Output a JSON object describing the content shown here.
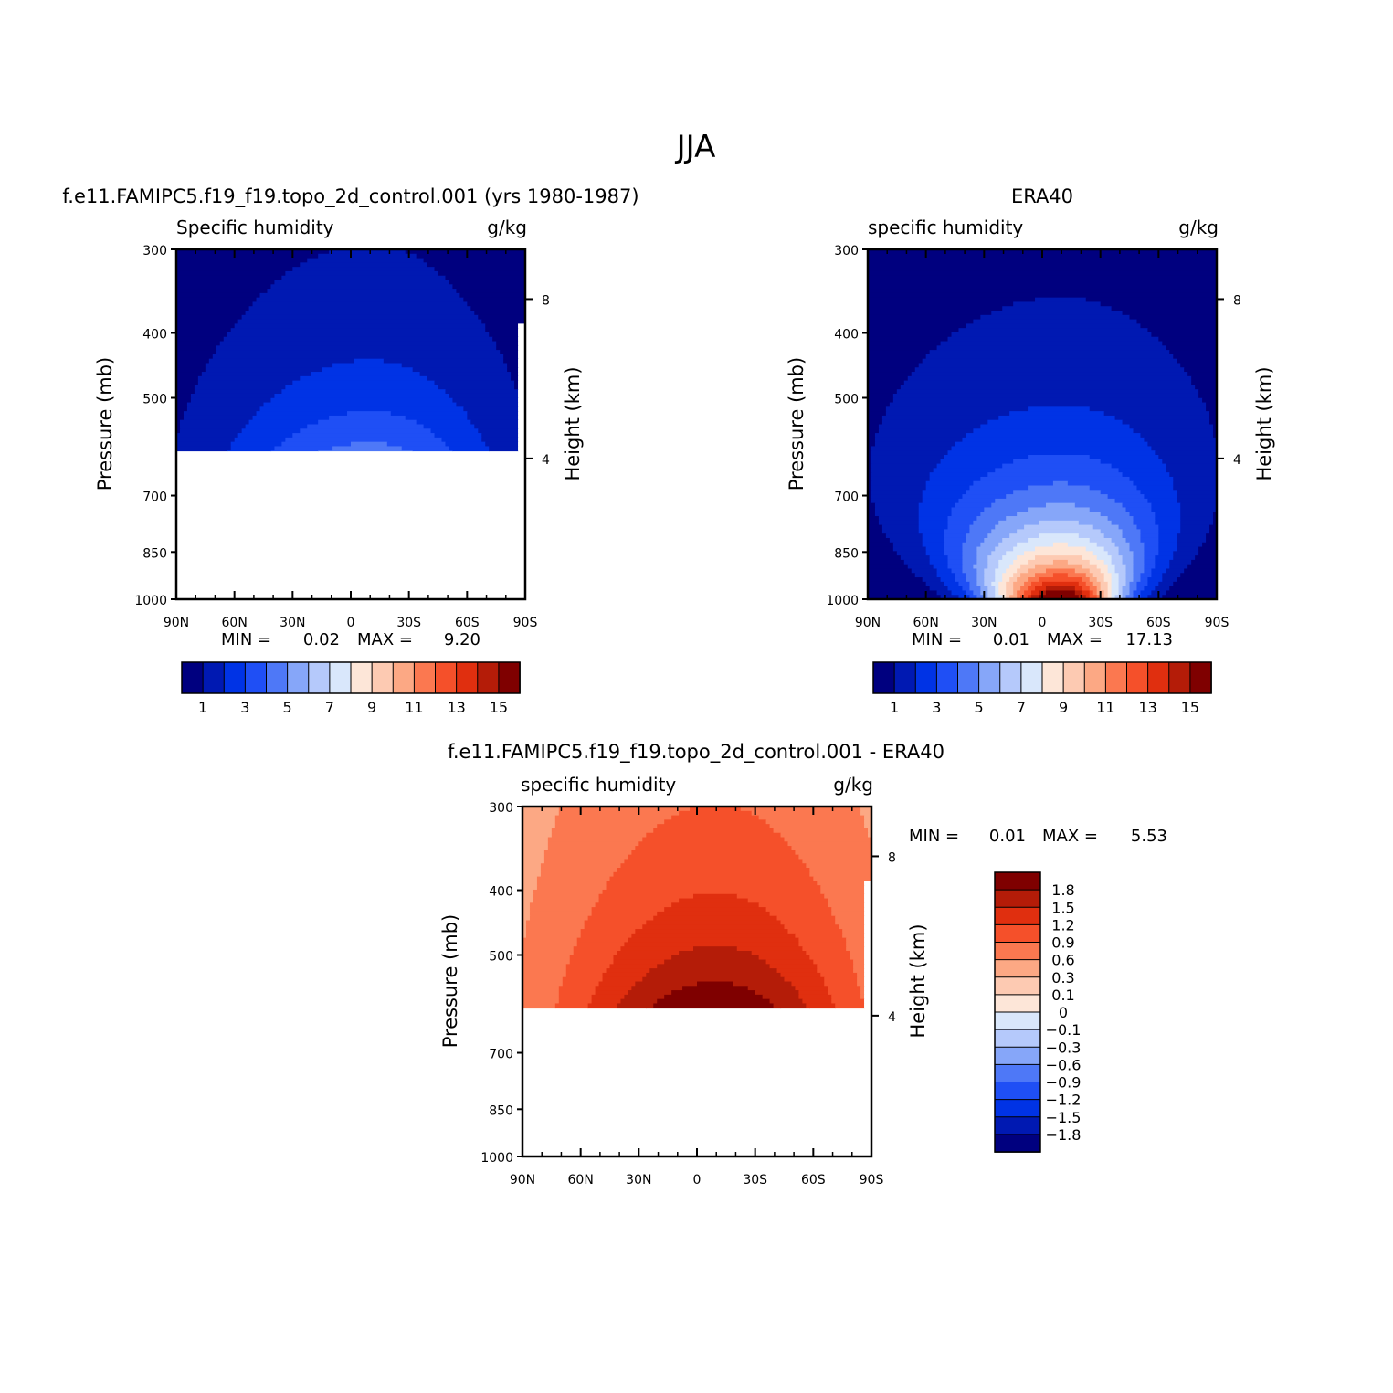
{
  "figure_title": "JJA",
  "colors": {
    "seq16": [
      "#00007f",
      "#0019b2",
      "#0033e5",
      "#1f4ff5",
      "#4e78f7",
      "#86a6f9",
      "#b5c9fb",
      "#d9e7fb",
      "#fde6d8",
      "#fdcab2",
      "#fca884",
      "#fb7850",
      "#f5502a",
      "#e02f0f",
      "#b41c08",
      "#7f0000"
    ],
    "diff18": [
      "#00007f",
      "#0019b2",
      "#0033e5",
      "#1f4ff5",
      "#4e78f7",
      "#86a6f9",
      "#b5c9fb",
      "#d9e7fb",
      "#fde6d8",
      "#fdcab2",
      "#fca884",
      "#fb7850",
      "#f5502a",
      "#e02f0f",
      "#b41c08",
      "#7f0000"
    ]
  },
  "chart_data": [
    {
      "type": "heatmap",
      "title": "f.e11.FAMIPC5.f19_f19.topo_2d_control.001 (yrs 1980-1987)",
      "left_label": "Specific humidity",
      "right_label": "g/kg",
      "xlabel": "",
      "ylabel": "Pressure (mb)",
      "y2label": "Height (km)",
      "x_ticks": [
        "90N",
        "60N",
        "30N",
        "0",
        "30S",
        "60S",
        "90S"
      ],
      "y_ticks": [
        300,
        400,
        500,
        700,
        850,
        1000
      ],
      "y2_ticks": [
        8,
        4
      ],
      "ylim": [
        300,
        1000
      ],
      "min_label": "MIN =",
      "min_value": "0.02",
      "max_label": "MAX =",
      "max_value": "9.20",
      "data_lower_limit_mb": 600,
      "colorbar_labels": [
        "1",
        "3",
        "5",
        "7",
        "9",
        "11",
        "13",
        "15"
      ],
      "levels": [
        1,
        2,
        3,
        4,
        5,
        6,
        7,
        8,
        9,
        10,
        11,
        12,
        13,
        14,
        15
      ],
      "peak_latitude": -10,
      "max_value_num": 9.2
    },
    {
      "type": "heatmap",
      "title": "ERA40",
      "left_label": "specific humidity",
      "right_label": "g/kg",
      "xlabel": "",
      "ylabel": "Pressure (mb)",
      "y2label": "Height (km)",
      "x_ticks": [
        "90N",
        "60N",
        "30N",
        "0",
        "30S",
        "60S",
        "90S"
      ],
      "y_ticks": [
        300,
        400,
        500,
        700,
        850,
        1000
      ],
      "y2_ticks": [
        8,
        4
      ],
      "ylim": [
        300,
        1000
      ],
      "min_label": "MIN =",
      "min_value": "0.01",
      "max_label": "MAX =",
      "max_value": "17.13",
      "data_lower_limit_mb": 1000,
      "colorbar_labels": [
        "1",
        "3",
        "5",
        "7",
        "9",
        "11",
        "13",
        "15"
      ],
      "levels": [
        1,
        2,
        3,
        4,
        5,
        6,
        7,
        8,
        9,
        10,
        11,
        12,
        13,
        14,
        15
      ],
      "peak_latitude": -10,
      "max_value_num": 17.13
    },
    {
      "type": "heatmap",
      "title": "f.e11.FAMIPC5.f19_f19.topo_2d_control.001 - ERA40",
      "left_label": "specific humidity",
      "right_label": "g/kg",
      "xlabel": "",
      "ylabel": "Pressure (mb)",
      "y2label": "Height (km)",
      "x_ticks": [
        "90N",
        "60N",
        "30N",
        "0",
        "30S",
        "60S",
        "90S"
      ],
      "y_ticks": [
        300,
        400,
        500,
        700,
        850,
        1000
      ],
      "y2_ticks": [
        8,
        4
      ],
      "ylim": [
        300,
        1000
      ],
      "min_label": "MIN =",
      "min_value": "0.01",
      "max_label": "MAX =",
      "max_value": "5.53",
      "data_lower_limit_mb": 600,
      "colorbar_labels": [
        "1.8",
        "1.5",
        "1.2",
        "0.9",
        "0.6",
        "0.3",
        "0.1",
        "0",
        "−0.1",
        "−0.3",
        "−0.6",
        "−0.9",
        "−1.2",
        "−1.5",
        "−1.8"
      ],
      "levels": [
        -1.8,
        -1.5,
        -1.2,
        -0.9,
        -0.6,
        -0.3,
        -0.1,
        0,
        0.1,
        0.3,
        0.6,
        0.9,
        1.2,
        1.5,
        1.8
      ],
      "peak_latitude": -10,
      "max_value_num": 5.53
    }
  ]
}
